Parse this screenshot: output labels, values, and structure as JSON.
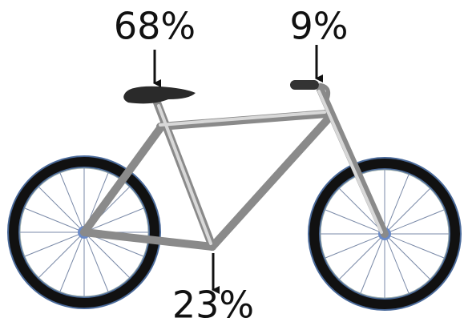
{
  "labels": {
    "saddle": "68%",
    "handlebar": "9%",
    "pedals": "23%"
  }
}
